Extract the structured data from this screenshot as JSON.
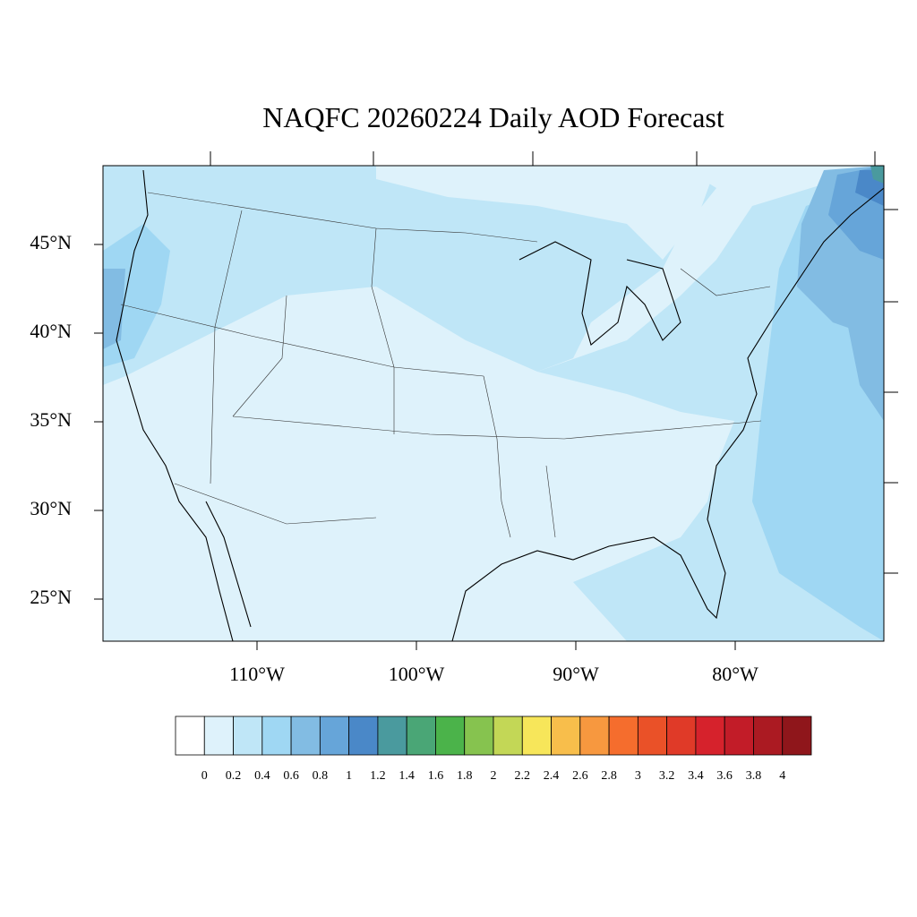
{
  "title": "NAQFC 20260224 Daily AOD Forecast",
  "lat_labels": [
    "45°N",
    "40°N",
    "35°N",
    "30°N",
    "25°N"
  ],
  "lon_labels": [
    "110°W",
    "100°W",
    "90°W",
    "80°W"
  ],
  "colorbar": {
    "colors": [
      "#ffffff",
      "#def2fb",
      "#bfe6f7",
      "#9fd7f3",
      "#82bce3",
      "#66a5d9",
      "#4a88c8",
      "#4a9a9e",
      "#4aa676",
      "#4bb34a",
      "#86c34f",
      "#c3d756",
      "#f7e65a",
      "#f8be4b",
      "#f7983f",
      "#f56d2d",
      "#ea5128",
      "#e03a28",
      "#d6222c",
      "#c21c28",
      "#ab1a22",
      "#8f161b"
    ],
    "labels": [
      0,
      0.2,
      0.4,
      0.6,
      0.8,
      1,
      1.2,
      1.4,
      1.6,
      1.8,
      2,
      2.2,
      2.4,
      2.6,
      2.8,
      3,
      3.2,
      3.4,
      3.6,
      3.8,
      4
    ]
  }
}
